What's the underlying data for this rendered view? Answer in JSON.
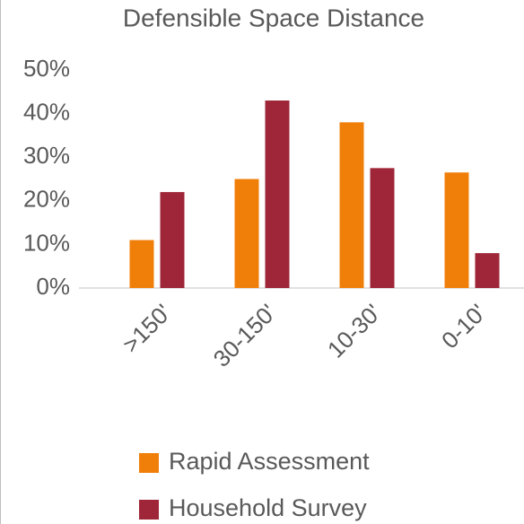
{
  "chart_data": {
    "type": "bar",
    "title": "Defensible Space Distance",
    "categories": [
      ">150'",
      "30-150'",
      "10-30'",
      "0-10'"
    ],
    "series": [
      {
        "name": "Rapid Assessment",
        "color": "#f07f09",
        "values": [
          11,
          25,
          38,
          26.5
        ]
      },
      {
        "name": "Household Survey",
        "color": "#9e2638",
        "values": [
          22,
          43,
          27.5,
          8
        ]
      }
    ],
    "ylim": [
      0,
      50
    ],
    "yticks": [
      {
        "value": 0,
        "label": "0%"
      },
      {
        "value": 10,
        "label": "10%"
      },
      {
        "value": 20,
        "label": "20%"
      },
      {
        "value": 30,
        "label": "30%"
      },
      {
        "value": 40,
        "label": "40%"
      },
      {
        "value": 50,
        "label": "50%"
      }
    ],
    "grid": false,
    "legend": "bottom"
  }
}
